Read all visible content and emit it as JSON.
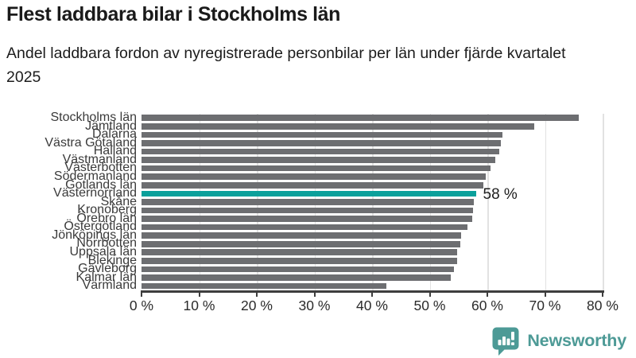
{
  "header": {
    "title": "Flest laddbara bilar i Stockholms län",
    "subtitle": "Andel laddbara fordon av nyregistrerade personbilar per län under fjärde kvartalet 2025"
  },
  "chart_data": {
    "type": "bar",
    "orientation": "horizontal",
    "title": "Flest laddbara bilar i Stockholms län",
    "subtitle": "Andel laddbara fordon av nyregistrerade personbilar per län under fjärde kvartalet 2025",
    "categories": [
      "Stockholms län",
      "Jämtland",
      "Dalarna",
      "Västra Götaland",
      "Halland",
      "Västmanland",
      "Västerbotten",
      "Södermanland",
      "Gotlands län",
      "Västernorrland",
      "Skåne",
      "Kronoberg",
      "Örebro län",
      "Östergötland",
      "Jönköpings län",
      "Norrbotten",
      "Uppsala län",
      "Blekinge",
      "Gävleborg",
      "Kalmar län",
      "Värmland"
    ],
    "values": [
      75.8,
      68.2,
      62.6,
      62.3,
      62.0,
      61.4,
      60.6,
      59.7,
      59.3,
      58.0,
      57.6,
      57.5,
      57.4,
      56.5,
      55.4,
      55.3,
      54.8,
      54.7,
      54.2,
      53.6,
      42.5
    ],
    "unit": "%",
    "xlim": [
      0,
      80
    ],
    "x_tick_labels": [
      "0 %",
      "10 %",
      "20 %",
      "30 %",
      "40 %",
      "50 %",
      "60 %",
      "70 %",
      "80 %"
    ],
    "grid": true,
    "legend": "none",
    "bar_color": "#6d6e71",
    "highlight": {
      "category": "Västernorrland",
      "value": 58,
      "label": "58 %",
      "color": "#0aa09b"
    }
  },
  "footer": {
    "brand": "Newsworthy",
    "logo_icon": "newsworthy-speech-bubble-chart-icon",
    "brand_color": "#4d9a96"
  },
  "colors": {
    "bar_gray": "#6d6e71",
    "highlight_teal": "#0aa09b",
    "axis": "#3e3e3e",
    "gridline": "#e2e2e2",
    "text_dark": "#1a1a1a"
  }
}
